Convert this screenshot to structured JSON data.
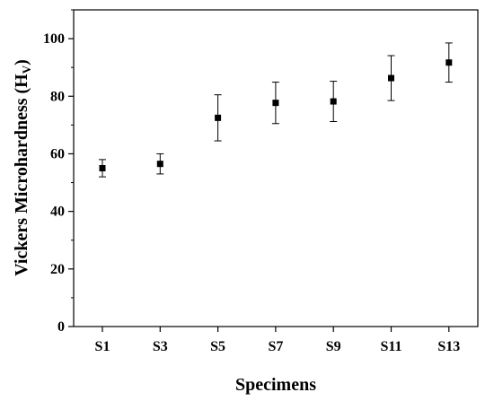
{
  "chart_data": {
    "type": "scatter",
    "xlabel": "Specimens",
    "ylabel_main": "Vickers Microhardness (H",
    "ylabel_sub": "V",
    "ylabel_close": ")",
    "categories": [
      "S1",
      "S3",
      "S5",
      "S7",
      "S9",
      "S11",
      "S13"
    ],
    "series": [
      {
        "values": [
          55.0,
          56.5,
          72.5,
          77.7,
          78.2,
          86.3,
          91.7
        ],
        "error": [
          3.0,
          3.5,
          8.0,
          7.2,
          7.0,
          7.8,
          6.8
        ],
        "marker": "square",
        "color": "#000000"
      }
    ],
    "ylim": [
      0,
      110
    ],
    "yticks": [
      0,
      20,
      40,
      60,
      80,
      100
    ],
    "grid": false,
    "legend": "none"
  }
}
